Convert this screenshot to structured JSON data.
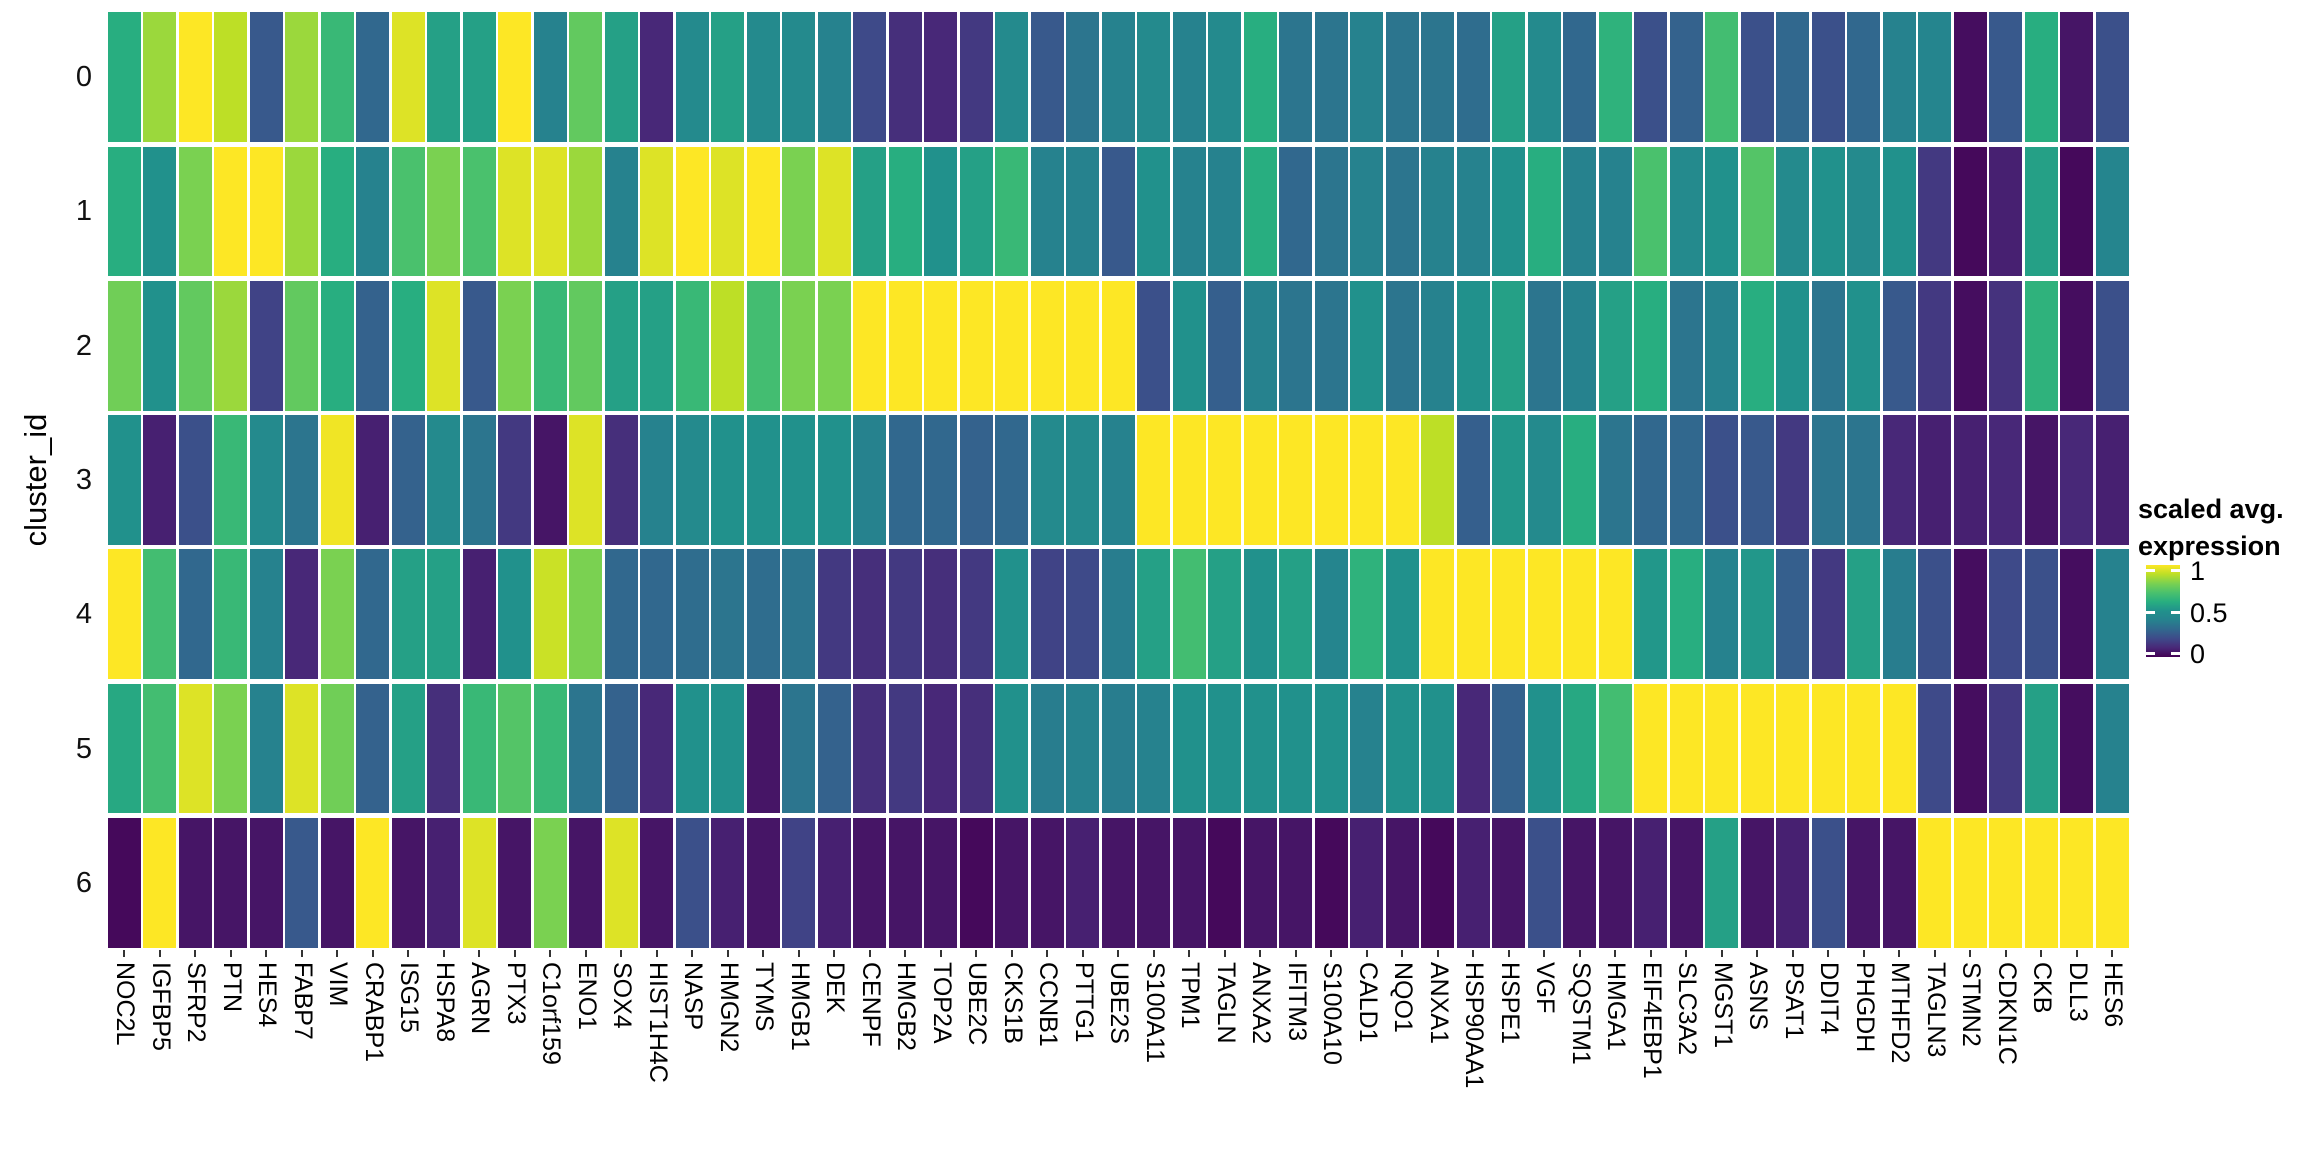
{
  "figure": {
    "y_axis_title": "cluster_id"
  },
  "legend": {
    "title_line1": "scaled avg.",
    "title_line2": "expression",
    "tick_labels": [
      "1",
      "0.5",
      "0"
    ],
    "tick_values": [
      1,
      0.5,
      0
    ]
  },
  "chart_data": {
    "type": "heatmap",
    "ylabel": "cluster_id",
    "legend_title": "scaled avg. expression",
    "colormap": "viridis",
    "value_range": [
      0,
      1
    ],
    "grid": false,
    "legend_position": "right",
    "rows": [
      "0",
      "1",
      "2",
      "3",
      "4",
      "5",
      "6"
    ],
    "columns": [
      "NOC2L",
      "IGFBP5",
      "SFRP2",
      "PTN",
      "HES4",
      "FABP7",
      "VIM",
      "CRABP1",
      "ISG15",
      "HSPA8",
      "AGRN",
      "PTX3",
      "C1orf159",
      "ENO1",
      "SOX4",
      "HIST1H4C",
      "NASP",
      "HMGN2",
      "TYMS",
      "HMGB1",
      "DEK",
      "CENPF",
      "HMGB2",
      "TOP2A",
      "UBE2C",
      "CKS1B",
      "CCNB1",
      "PTTG1",
      "UBE2S",
      "S100A11",
      "TPM1",
      "TAGLN",
      "ANXA2",
      "IFITM3",
      "S100A10",
      "CALD1",
      "NQO1",
      "ANXA1",
      "HSP90AA1",
      "HSPE1",
      "VGF",
      "SQSTM1",
      "HMGA1",
      "EIF4EBP1",
      "SLC3A2",
      "MGST1",
      "ASNS",
      "PSAT1",
      "DDIT4",
      "PHGDH",
      "MTHFD2",
      "TAGLN3",
      "STMN2",
      "CDKN1C",
      "CKB",
      "DLL3",
      "HES6"
    ],
    "values": [
      [
        0.6,
        0.85,
        1.0,
        0.9,
        0.25,
        0.85,
        0.65,
        0.3,
        0.95,
        0.55,
        0.55,
        1.0,
        0.4,
        0.75,
        0.55,
        0.1,
        0.45,
        0.55,
        0.45,
        0.45,
        0.4,
        0.2,
        0.12,
        0.1,
        0.15,
        0.45,
        0.25,
        0.35,
        0.4,
        0.45,
        0.4,
        0.45,
        0.6,
        0.35,
        0.35,
        0.4,
        0.35,
        0.35,
        0.32,
        0.55,
        0.45,
        0.3,
        0.62,
        0.22,
        0.28,
        0.68,
        0.22,
        0.3,
        0.22,
        0.3,
        0.4,
        0.42,
        0.03,
        0.25,
        0.6,
        0.05,
        0.22
      ],
      [
        0.6,
        0.5,
        0.8,
        1.0,
        1.0,
        0.85,
        0.6,
        0.4,
        0.7,
        0.8,
        0.7,
        0.95,
        0.95,
        0.85,
        0.4,
        0.95,
        1.0,
        0.95,
        1.0,
        0.8,
        0.95,
        0.55,
        0.6,
        0.5,
        0.55,
        0.65,
        0.4,
        0.4,
        0.25,
        0.5,
        0.4,
        0.4,
        0.6,
        0.3,
        0.35,
        0.4,
        0.35,
        0.4,
        0.4,
        0.5,
        0.6,
        0.4,
        0.4,
        0.7,
        0.45,
        0.5,
        0.72,
        0.45,
        0.5,
        0.45,
        0.5,
        0.15,
        0.02,
        0.08,
        0.55,
        0.02,
        0.42
      ],
      [
        0.78,
        0.5,
        0.75,
        0.85,
        0.18,
        0.75,
        0.6,
        0.28,
        0.6,
        0.95,
        0.25,
        0.8,
        0.65,
        0.75,
        0.55,
        0.55,
        0.65,
        0.9,
        0.68,
        0.8,
        0.8,
        1.0,
        1.0,
        1.0,
        1.0,
        1.0,
        1.0,
        1.0,
        1.0,
        0.22,
        0.5,
        0.27,
        0.4,
        0.35,
        0.35,
        0.5,
        0.35,
        0.4,
        0.5,
        0.55,
        0.35,
        0.4,
        0.55,
        0.6,
        0.35,
        0.4,
        0.6,
        0.5,
        0.35,
        0.5,
        0.25,
        0.15,
        0.03,
        0.13,
        0.62,
        0.03,
        0.22
      ],
      [
        0.5,
        0.08,
        0.22,
        0.65,
        0.45,
        0.35,
        0.98,
        0.08,
        0.28,
        0.45,
        0.35,
        0.15,
        0.05,
        0.95,
        0.12,
        0.4,
        0.45,
        0.5,
        0.5,
        0.5,
        0.5,
        0.4,
        0.3,
        0.3,
        0.28,
        0.3,
        0.45,
        0.45,
        0.4,
        1.0,
        1.0,
        1.0,
        1.0,
        1.0,
        1.0,
        1.0,
        1.0,
        0.9,
        0.27,
        0.52,
        0.45,
        0.6,
        0.35,
        0.3,
        0.3,
        0.22,
        0.25,
        0.15,
        0.35,
        0.35,
        0.1,
        0.08,
        0.08,
        0.1,
        0.05,
        0.1,
        0.08
      ],
      [
        1.0,
        0.68,
        0.3,
        0.65,
        0.4,
        0.1,
        0.8,
        0.3,
        0.55,
        0.55,
        0.08,
        0.5,
        0.92,
        0.8,
        0.3,
        0.3,
        0.32,
        0.35,
        0.32,
        0.35,
        0.15,
        0.12,
        0.15,
        0.12,
        0.15,
        0.5,
        0.18,
        0.2,
        0.38,
        0.55,
        0.68,
        0.55,
        0.5,
        0.55,
        0.42,
        0.62,
        0.5,
        1.0,
        1.0,
        1.0,
        1.0,
        1.0,
        1.0,
        0.52,
        0.6,
        0.4,
        0.52,
        0.27,
        0.15,
        0.55,
        0.38,
        0.22,
        0.03,
        0.2,
        0.22,
        0.03,
        0.4
      ],
      [
        0.58,
        0.68,
        0.95,
        0.8,
        0.4,
        0.95,
        0.78,
        0.28,
        0.55,
        0.12,
        0.65,
        0.72,
        0.65,
        0.35,
        0.28,
        0.1,
        0.5,
        0.5,
        0.05,
        0.35,
        0.28,
        0.12,
        0.15,
        0.1,
        0.12,
        0.5,
        0.38,
        0.4,
        0.38,
        0.4,
        0.5,
        0.5,
        0.5,
        0.5,
        0.5,
        0.4,
        0.5,
        0.5,
        0.1,
        0.28,
        0.5,
        0.58,
        0.68,
        1.0,
        1.0,
        1.0,
        1.0,
        1.0,
        1.0,
        1.0,
        1.0,
        0.2,
        0.03,
        0.15,
        0.55,
        0.03,
        0.4
      ],
      [
        0.02,
        1.0,
        0.05,
        0.05,
        0.05,
        0.25,
        0.05,
        1.0,
        0.05,
        0.08,
        0.95,
        0.05,
        0.8,
        0.05,
        0.95,
        0.05,
        0.22,
        0.08,
        0.05,
        0.18,
        0.08,
        0.05,
        0.05,
        0.05,
        0.02,
        0.05,
        0.05,
        0.08,
        0.05,
        0.05,
        0.05,
        0.02,
        0.05,
        0.05,
        0.02,
        0.08,
        0.05,
        0.02,
        0.08,
        0.05,
        0.22,
        0.05,
        0.05,
        0.08,
        0.05,
        0.55,
        0.05,
        0.08,
        0.22,
        0.05,
        0.05,
        1.0,
        1.0,
        1.0,
        1.0,
        1.0,
        1.0
      ]
    ]
  }
}
